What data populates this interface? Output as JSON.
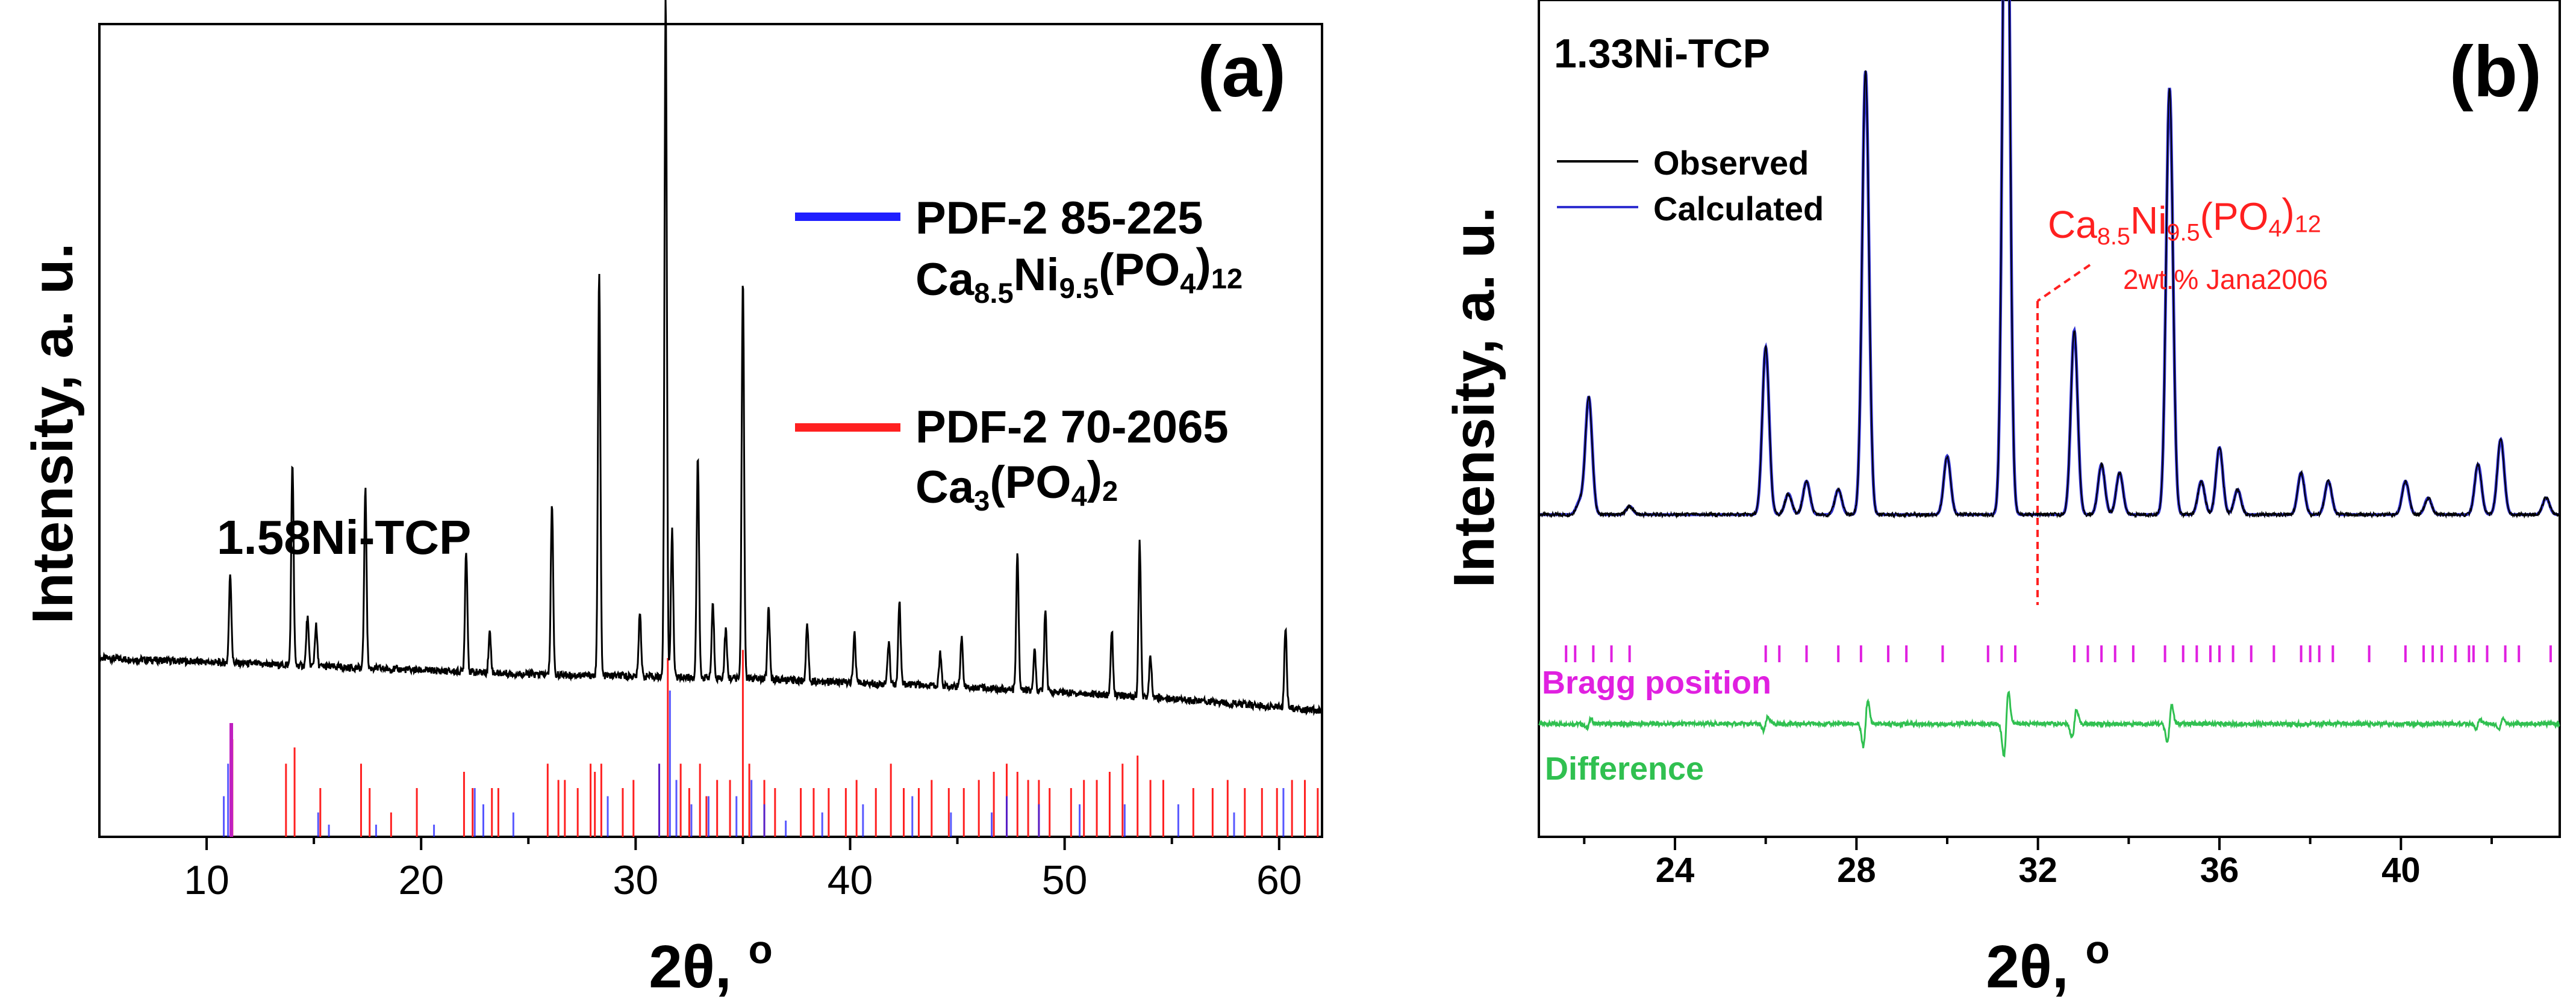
{
  "chart_data": [
    {
      "type": "line",
      "panel_label": "(a)",
      "sample_label": "1.58Ni-TCP",
      "xlabel_main": "2θ, ",
      "xlabel_sup": "o",
      "ylabel": "Intensity, a. u.",
      "xlim": [
        5,
        62
      ],
      "ylim": [
        0,
        100
      ],
      "x_ticks": [
        10,
        20,
        30,
        40,
        50,
        60
      ],
      "legend": [
        {
          "name": "PDF-2 85-225",
          "formula_parts": [
            [
              "Ca",
              ""
            ],
            [
              "8.5",
              "sub"
            ],
            [
              "Ni",
              ""
            ],
            [
              "9.5",
              "sub"
            ],
            [
              "(PO",
              ""
            ],
            [
              "4",
              "sub"
            ],
            [
              ")",
              ""
            ],
            [
              "12",
              "sub"
            ]
          ],
          "color": "#1f1fff"
        },
        {
          "name": "PDF-2 70-2065",
          "formula_parts": [
            [
              "Ca",
              ""
            ],
            [
              "3",
              "sub"
            ],
            [
              "(PO",
              ""
            ],
            [
              "4",
              "sub"
            ],
            [
              ")",
              ""
            ],
            [
              "2",
              "sub"
            ]
          ],
          "color": "#ff2020"
        }
      ],
      "observed_baseline": [
        [
          5,
          22
        ],
        [
          15,
          21
        ],
        [
          25,
          20
        ],
        [
          35,
          19.5
        ],
        [
          45,
          18.5
        ],
        [
          55,
          17
        ],
        [
          62,
          15.5
        ]
      ],
      "observed_peaks": [
        [
          11.1,
          11
        ],
        [
          14.0,
          25
        ],
        [
          14.7,
          6
        ],
        [
          15.1,
          5
        ],
        [
          17.4,
          22
        ],
        [
          22.1,
          15
        ],
        [
          23.2,
          5
        ],
        [
          26.1,
          21
        ],
        [
          28.3,
          50
        ],
        [
          30.2,
          8
        ],
        [
          31.4,
          84
        ],
        [
          31.7,
          18
        ],
        [
          32.9,
          27
        ],
        [
          33.6,
          9
        ],
        [
          34.2,
          6
        ],
        [
          35.0,
          49
        ],
        [
          36.2,
          9
        ],
        [
          38.0,
          7
        ],
        [
          40.2,
          6
        ],
        [
          41.8,
          5
        ],
        [
          42.3,
          10
        ],
        [
          44.2,
          4
        ],
        [
          45.2,
          6
        ],
        [
          47.8,
          17
        ],
        [
          48.6,
          5
        ],
        [
          49.1,
          10
        ],
        [
          52.2,
          8
        ],
        [
          53.5,
          19
        ],
        [
          54.0,
          5
        ],
        [
          60.3,
          10
        ]
      ],
      "ref_blue": [
        [
          10.8,
          5
        ],
        [
          11.0,
          9
        ],
        [
          15.2,
          3
        ],
        [
          15.7,
          1.5
        ],
        [
          17.9,
          1.5
        ],
        [
          20.6,
          1.5
        ],
        [
          22.5,
          6
        ],
        [
          22.9,
          4
        ],
        [
          24.3,
          3
        ],
        [
          28.7,
          5
        ],
        [
          31.1,
          9
        ],
        [
          31.6,
          18
        ],
        [
          31.9,
          7
        ],
        [
          32.6,
          4
        ],
        [
          33.4,
          5
        ],
        [
          34.7,
          5
        ],
        [
          35.4,
          7
        ],
        [
          36.0,
          4
        ],
        [
          37.0,
          2
        ],
        [
          38.7,
          3
        ],
        [
          40.6,
          4
        ],
        [
          42.9,
          5
        ],
        [
          44.7,
          3
        ],
        [
          46.6,
          3
        ],
        [
          47.3,
          5
        ],
        [
          48.8,
          4
        ],
        [
          50.7,
          4
        ],
        [
          52.8,
          4
        ],
        [
          55.3,
          4
        ],
        [
          57.9,
          3
        ],
        [
          60.2,
          6
        ]
      ],
      "ref_red": [
        [
          11.2,
          12
        ],
        [
          13.7,
          9
        ],
        [
          14.1,
          11
        ],
        [
          15.3,
          6
        ],
        [
          17.2,
          9
        ],
        [
          17.6,
          6
        ],
        [
          18.6,
          3
        ],
        [
          19.8,
          6
        ],
        [
          22.0,
          8
        ],
        [
          22.4,
          6
        ],
        [
          23.3,
          6
        ],
        [
          23.6,
          6
        ],
        [
          25.9,
          9
        ],
        [
          26.4,
          7
        ],
        [
          26.7,
          7
        ],
        [
          27.3,
          6
        ],
        [
          27.9,
          9
        ],
        [
          28.1,
          8
        ],
        [
          28.4,
          9
        ],
        [
          29.4,
          6
        ],
        [
          29.9,
          7
        ],
        [
          31.1,
          9
        ],
        [
          31.5,
          22
        ],
        [
          32.1,
          9
        ],
        [
          32.5,
          6
        ],
        [
          33.0,
          9
        ],
        [
          33.3,
          5
        ],
        [
          33.8,
          7
        ],
        [
          34.4,
          7
        ],
        [
          35.0,
          23
        ],
        [
          35.3,
          9
        ],
        [
          36.0,
          7
        ],
        [
          36.5,
          6
        ],
        [
          37.7,
          6
        ],
        [
          38.3,
          6
        ],
        [
          39.0,
          6
        ],
        [
          39.8,
          6
        ],
        [
          40.3,
          7
        ],
        [
          41.2,
          6
        ],
        [
          41.9,
          9
        ],
        [
          42.5,
          6
        ],
        [
          43.2,
          6
        ],
        [
          43.8,
          7
        ],
        [
          44.6,
          6
        ],
        [
          45.3,
          6
        ],
        [
          46.0,
          7
        ],
        [
          46.7,
          8
        ],
        [
          47.3,
          9
        ],
        [
          47.8,
          8
        ],
        [
          48.3,
          7
        ],
        [
          48.8,
          7
        ],
        [
          49.3,
          6
        ],
        [
          50.3,
          6
        ],
        [
          50.9,
          7
        ],
        [
          51.5,
          7
        ],
        [
          52.1,
          8
        ],
        [
          52.7,
          9
        ],
        [
          53.4,
          10
        ],
        [
          54.0,
          7
        ],
        [
          54.6,
          7
        ],
        [
          56.0,
          6
        ],
        [
          56.9,
          6
        ],
        [
          57.6,
          7
        ],
        [
          58.4,
          6
        ],
        [
          59.2,
          6
        ],
        [
          59.9,
          6
        ],
        [
          60.6,
          7
        ],
        [
          61.2,
          7
        ],
        [
          61.8,
          6
        ]
      ]
    },
    {
      "type": "line",
      "panel_label": "(b)",
      "sample_label": "1.33Ni-TCP",
      "xlabel_main": "2θ, ",
      "xlabel_sup": "o",
      "ylabel": "Intensity, a. u.",
      "xlim": [
        21,
        43.5
      ],
      "ylim": [
        0,
        100
      ],
      "x_ticks": [
        24,
        28,
        32,
        36,
        40
      ],
      "legend": [
        {
          "name": "Observed",
          "color": "#000000"
        },
        {
          "name": "Calculated",
          "color": "#3030d0"
        }
      ],
      "phase_annotation_parts": [
        [
          "Ca",
          ""
        ],
        [
          "8.5",
          "sub"
        ],
        [
          "Ni",
          ""
        ],
        [
          "9.5",
          "sub"
        ],
        [
          "(PO",
          ""
        ],
        [
          "4",
          "sub"
        ],
        [
          ")",
          ""
        ],
        [
          "12",
          "sub"
        ]
      ],
      "phase_amount": "2wt.% Jana2006",
      "annotation_color": "#ff2020",
      "bragg_label": "Bragg position",
      "bragg_color": "#e020e0",
      "difference_label": "Difference",
      "difference_color": "#30c050",
      "observed_baseline": 38.5,
      "peaks": [
        [
          21.9,
          1.5
        ],
        [
          22.1,
          14
        ],
        [
          23.0,
          1
        ],
        [
          26.0,
          20
        ],
        [
          26.5,
          2.5
        ],
        [
          26.9,
          4
        ],
        [
          27.6,
          3
        ],
        [
          28.2,
          53
        ],
        [
          30.0,
          7
        ],
        [
          31.3,
          98
        ],
        [
          32.8,
          22
        ],
        [
          33.4,
          6
        ],
        [
          33.8,
          5
        ],
        [
          34.9,
          51
        ],
        [
          35.6,
          4
        ],
        [
          36.0,
          8
        ],
        [
          36.4,
          3
        ],
        [
          37.8,
          5
        ],
        [
          38.4,
          4
        ],
        [
          40.1,
          4
        ],
        [
          40.6,
          2
        ],
        [
          41.7,
          6
        ],
        [
          42.2,
          9
        ],
        [
          43.2,
          2
        ]
      ],
      "bragg_positions": [
        21.6,
        21.8,
        22.2,
        22.6,
        23.0,
        26.0,
        26.3,
        26.9,
        27.6,
        28.1,
        28.7,
        29.1,
        29.9,
        30.9,
        31.2,
        31.5,
        32.8,
        33.1,
        33.4,
        33.7,
        34.1,
        34.8,
        35.2,
        35.5,
        35.8,
        36.0,
        36.3,
        36.7,
        37.2,
        37.8,
        38.0,
        38.2,
        38.5,
        39.3,
        40.1,
        40.5,
        40.7,
        40.9,
        41.2,
        41.5,
        41.6,
        41.9,
        42.3,
        42.6,
        43.3
      ],
      "difference_spikes": [
        [
          28.2,
          5
        ],
        [
          31.3,
          7
        ],
        [
          32.8,
          3
        ],
        [
          34.9,
          4
        ],
        [
          26.0,
          1.5
        ],
        [
          22.1,
          1
        ],
        [
          42.2,
          1.2
        ],
        [
          41.7,
          1
        ]
      ]
    }
  ]
}
